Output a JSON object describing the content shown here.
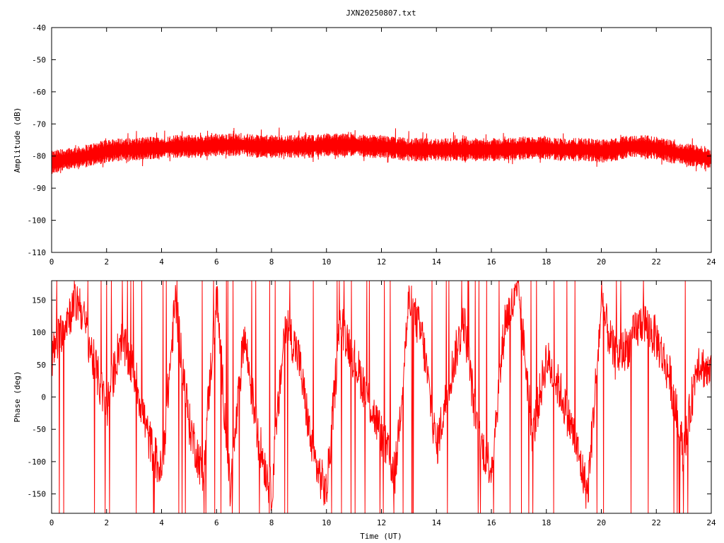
{
  "title": "JXN20250807.txt",
  "colors": {
    "trace": "#ff0000",
    "frame": "#000000",
    "grid": "#a0a0a0",
    "background": "#ffffff"
  },
  "chart_data": [
    {
      "type": "line",
      "title": "JXN20250807.txt",
      "xlabel": "",
      "ylabel": "Amplitude (dB)",
      "xlim": [
        0,
        24
      ],
      "ylim": [
        -110,
        -40
      ],
      "xticks": [
        "0",
        "2",
        "4",
        "6",
        "8",
        "10",
        "12",
        "14",
        "16",
        "18",
        "20",
        "22",
        "24"
      ],
      "yticks": [
        "-40",
        "-50",
        "-60",
        "-70",
        "-80",
        "-90",
        "-100",
        "-110"
      ],
      "grid": false,
      "series": [
        {
          "color": "#ff0000",
          "band": 2.4,
          "x": [
            0,
            0.5,
            1,
            1.5,
            2,
            2.5,
            3,
            3.5,
            4,
            4.5,
            5,
            5.5,
            6,
            6.5,
            7,
            7.5,
            8,
            8.5,
            9,
            9.5,
            10,
            10.5,
            11,
            11.5,
            12,
            12.5,
            13,
            13.5,
            14,
            14.5,
            15,
            15.5,
            16,
            16.5,
            17,
            17.5,
            18,
            18.5,
            19,
            19.5,
            20,
            20.5,
            21,
            21.5,
            22,
            22.5,
            23,
            23.5,
            24
          ],
          "y": [
            -82,
            -81,
            -80.5,
            -79.5,
            -78.5,
            -78,
            -78,
            -77.5,
            -77.5,
            -77,
            -77,
            -77,
            -76.5,
            -76.5,
            -76.5,
            -77,
            -77,
            -77,
            -77,
            -77,
            -76.5,
            -76.5,
            -76.5,
            -77,
            -77,
            -77.5,
            -78,
            -78,
            -78,
            -78,
            -78,
            -78,
            -78,
            -78,
            -77.5,
            -77.5,
            -77.5,
            -78,
            -78,
            -78,
            -78.5,
            -78,
            -77,
            -77,
            -77.5,
            -78.5,
            -79.5,
            -80,
            -81
          ]
        }
      ]
    },
    {
      "type": "line",
      "title": "",
      "xlabel": "Time (UT)",
      "ylabel": "Phase (deg)",
      "xlim": [
        0,
        24
      ],
      "ylim": [
        -180,
        180
      ],
      "xticks": [
        "0",
        "2",
        "4",
        "6",
        "8",
        "10",
        "12",
        "14",
        "16",
        "18",
        "20",
        "22",
        "24"
      ],
      "yticks": [
        "150",
        "100",
        "50",
        "0",
        "-50",
        "-100",
        "-150"
      ],
      "ytick_values": [
        150,
        100,
        50,
        0,
        -50,
        -100,
        -150
      ],
      "grid": false,
      "wrapped": true,
      "series": [
        {
          "color": "#ff0000",
          "x": [
            0,
            0.5,
            1,
            1.5,
            2,
            2.5,
            3,
            3.5,
            4,
            4.5,
            5,
            5.5,
            6,
            6.5,
            7,
            7.5,
            8,
            8.5,
            9,
            9.5,
            10,
            10.5,
            11,
            11.5,
            12,
            12.5,
            13,
            13.5,
            14,
            14.5,
            15,
            15.5,
            16,
            16.5,
            17,
            17.5,
            18,
            18.5,
            19,
            19.5,
            20,
            20.5,
            21,
            21.5,
            22,
            22.5,
            23,
            23.5,
            24
          ],
          "y": [
            60,
            120,
            150,
            60,
            -20,
            90,
            40,
            -60,
            -120,
            150,
            -40,
            -120,
            160,
            -150,
            100,
            -60,
            -150,
            120,
            60,
            -90,
            -150,
            120,
            60,
            0,
            -60,
            -120,
            150,
            90,
            -80,
            30,
            120,
            -60,
            -110,
            120,
            160,
            -60,
            60,
            10,
            -60,
            -150,
            140,
            60,
            80,
            120,
            90,
            30,
            -90,
            60,
            30
          ]
        }
      ]
    }
  ]
}
